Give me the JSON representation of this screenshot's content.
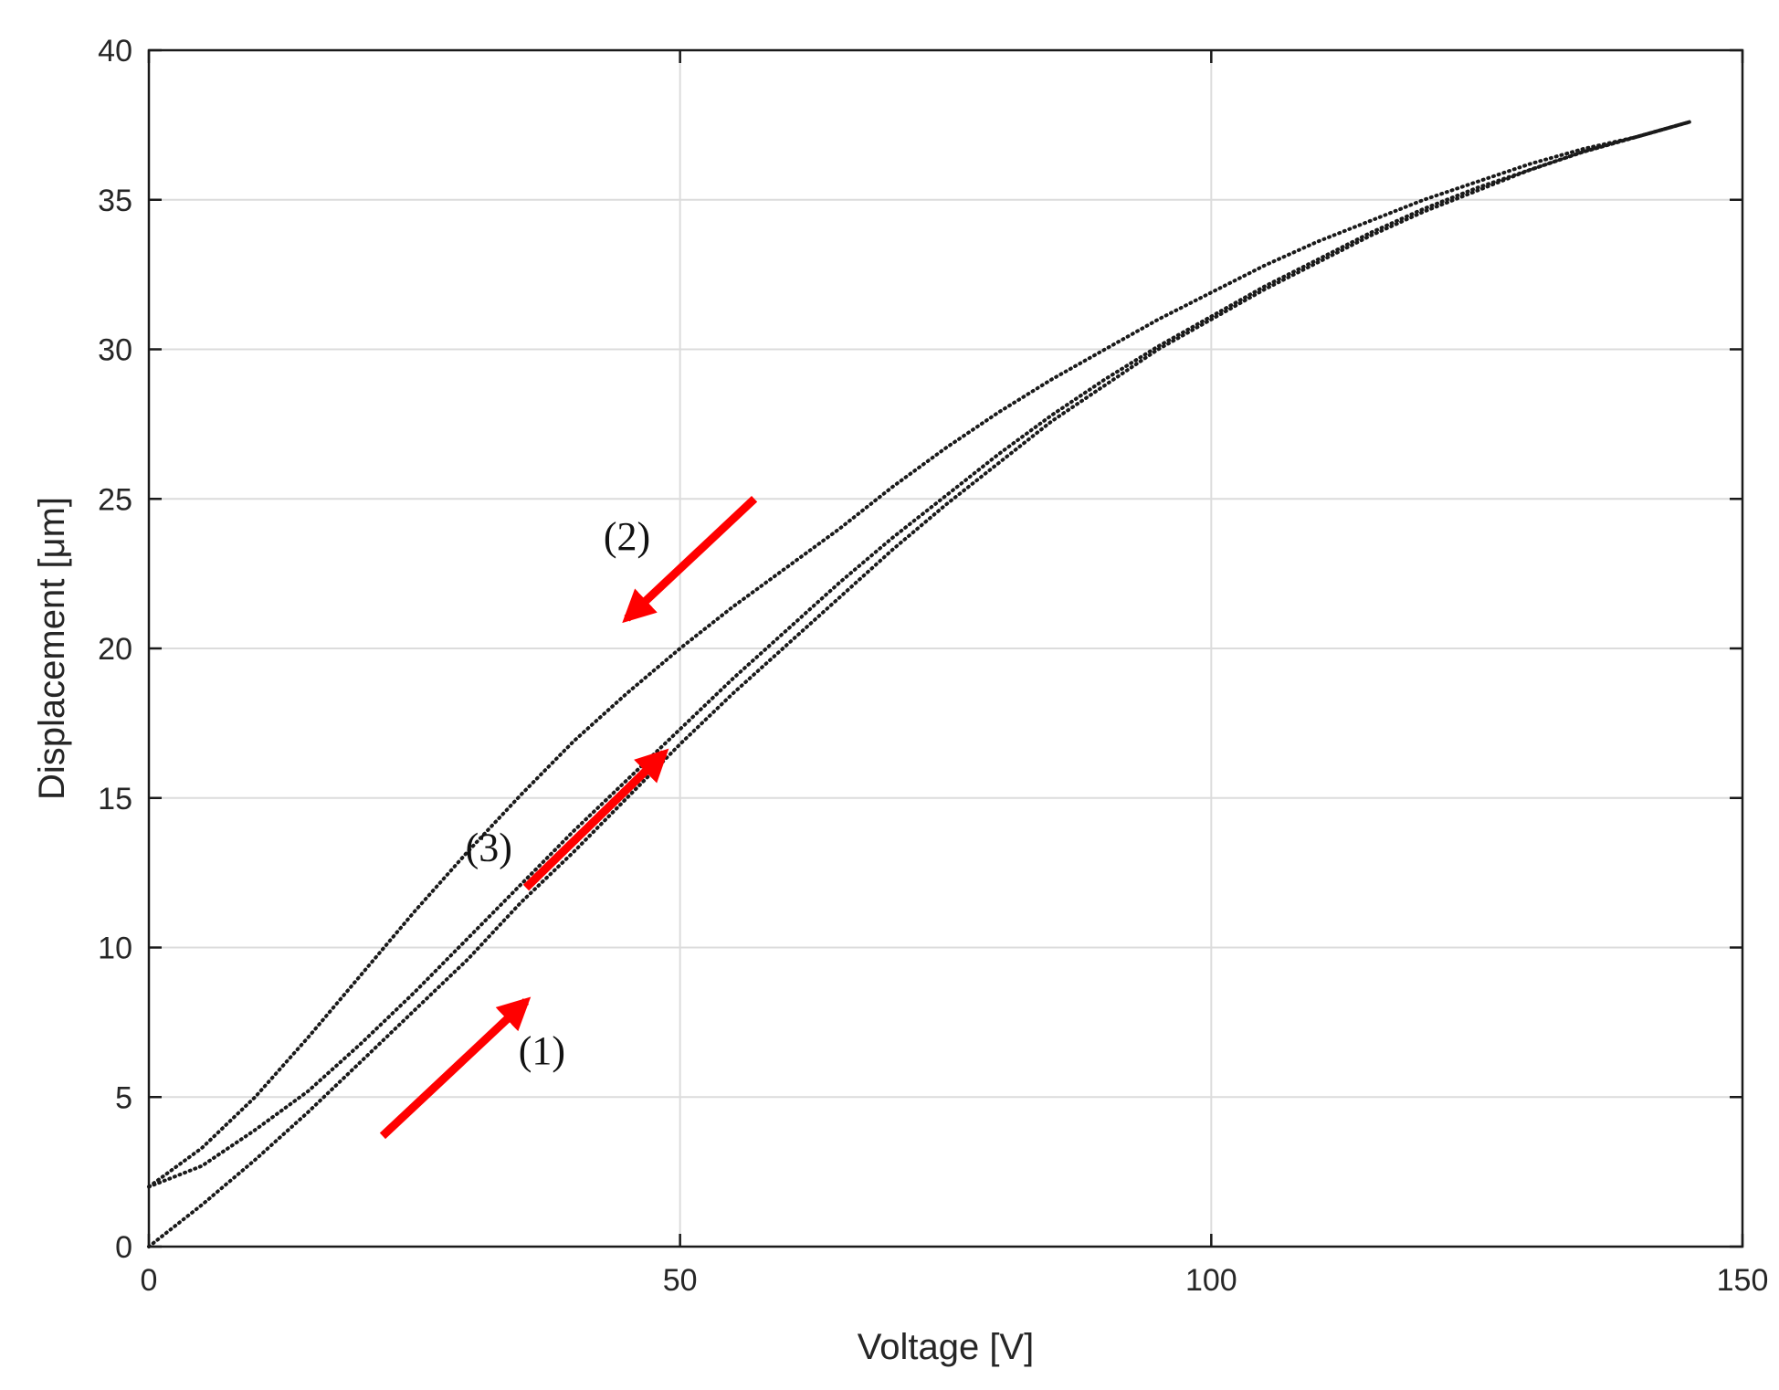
{
  "chart_data": {
    "type": "line",
    "title": "",
    "xlabel": "Voltage [V]",
    "ylabel": "Displacement [μm]",
    "xlim": [
      0,
      150
    ],
    "ylim": [
      0,
      40
    ],
    "xticks": [
      0,
      50,
      100,
      150
    ],
    "yticks": [
      0,
      5,
      10,
      15,
      20,
      25,
      30,
      35,
      40
    ],
    "grid": true,
    "line_style": "dotted",
    "series_color": "#1a1a1a",
    "series": [
      {
        "x": [
          0,
          5,
          10,
          15,
          20,
          25,
          30,
          35,
          40,
          45,
          50,
          55,
          60,
          65,
          70,
          75,
          80,
          85,
          90,
          95,
          100,
          105,
          110,
          115,
          120,
          125,
          130,
          135,
          140,
          145
        ],
        "y": [
          0,
          1.4,
          2.9,
          4.5,
          6.2,
          7.9,
          9.6,
          11.5,
          13.2,
          15.0,
          16.8,
          18.5,
          20.1,
          21.7,
          23.3,
          24.8,
          26.2,
          27.6,
          28.8,
          30.0,
          31.0,
          32.0,
          32.9,
          33.8,
          34.6,
          35.3,
          36.0,
          36.6,
          37.1,
          37.6
        ]
      },
      {
        "x": [
          145,
          140,
          135,
          130,
          125,
          120,
          115,
          110,
          105,
          100,
          95,
          90,
          85,
          80,
          75,
          70,
          65,
          60,
          55,
          50,
          45,
          40,
          35,
          30,
          25,
          20,
          15,
          10,
          5,
          0
        ],
        "y": [
          37.6,
          37.1,
          36.7,
          36.2,
          35.6,
          35.0,
          34.3,
          33.6,
          32.8,
          31.9,
          31.0,
          30.0,
          29.0,
          27.9,
          26.7,
          25.4,
          24.0,
          22.7,
          21.4,
          20.0,
          18.5,
          16.9,
          15.1,
          13.2,
          11.2,
          9.1,
          7.0,
          5.0,
          3.3,
          2.0
        ]
      },
      {
        "x": [
          0,
          5,
          10,
          15,
          20,
          25,
          30,
          35,
          40,
          45,
          50,
          55,
          60,
          65,
          70,
          75,
          80,
          85,
          90,
          95,
          100,
          105,
          110,
          115,
          120,
          125,
          130,
          135,
          140,
          145
        ],
        "y": [
          2.0,
          2.7,
          3.9,
          5.2,
          6.8,
          8.5,
          10.3,
          12.1,
          13.9,
          15.6,
          17.3,
          19.0,
          20.6,
          22.2,
          23.7,
          25.1,
          26.5,
          27.8,
          29.0,
          30.1,
          31.1,
          32.1,
          33.0,
          33.9,
          34.7,
          35.4,
          36.0,
          36.6,
          37.1,
          37.6
        ]
      }
    ],
    "annotations": [
      {
        "text": "(1)",
        "x": 37,
        "y": 6.1,
        "color": "#ff0000",
        "arrow_from": [
          22,
          3.7
        ],
        "arrow_to": [
          35.5,
          8.2
        ]
      },
      {
        "text": "(2)",
        "x": 45,
        "y": 23.3,
        "color": "#ff0000",
        "arrow_from": [
          57,
          25.0
        ],
        "arrow_to": [
          45,
          21.0
        ]
      },
      {
        "text": "(3)",
        "x": 32,
        "y": 12.9,
        "color": "#ff0000",
        "arrow_from": [
          35.5,
          12.0
        ],
        "arrow_to": [
          48.5,
          16.5
        ]
      }
    ]
  }
}
